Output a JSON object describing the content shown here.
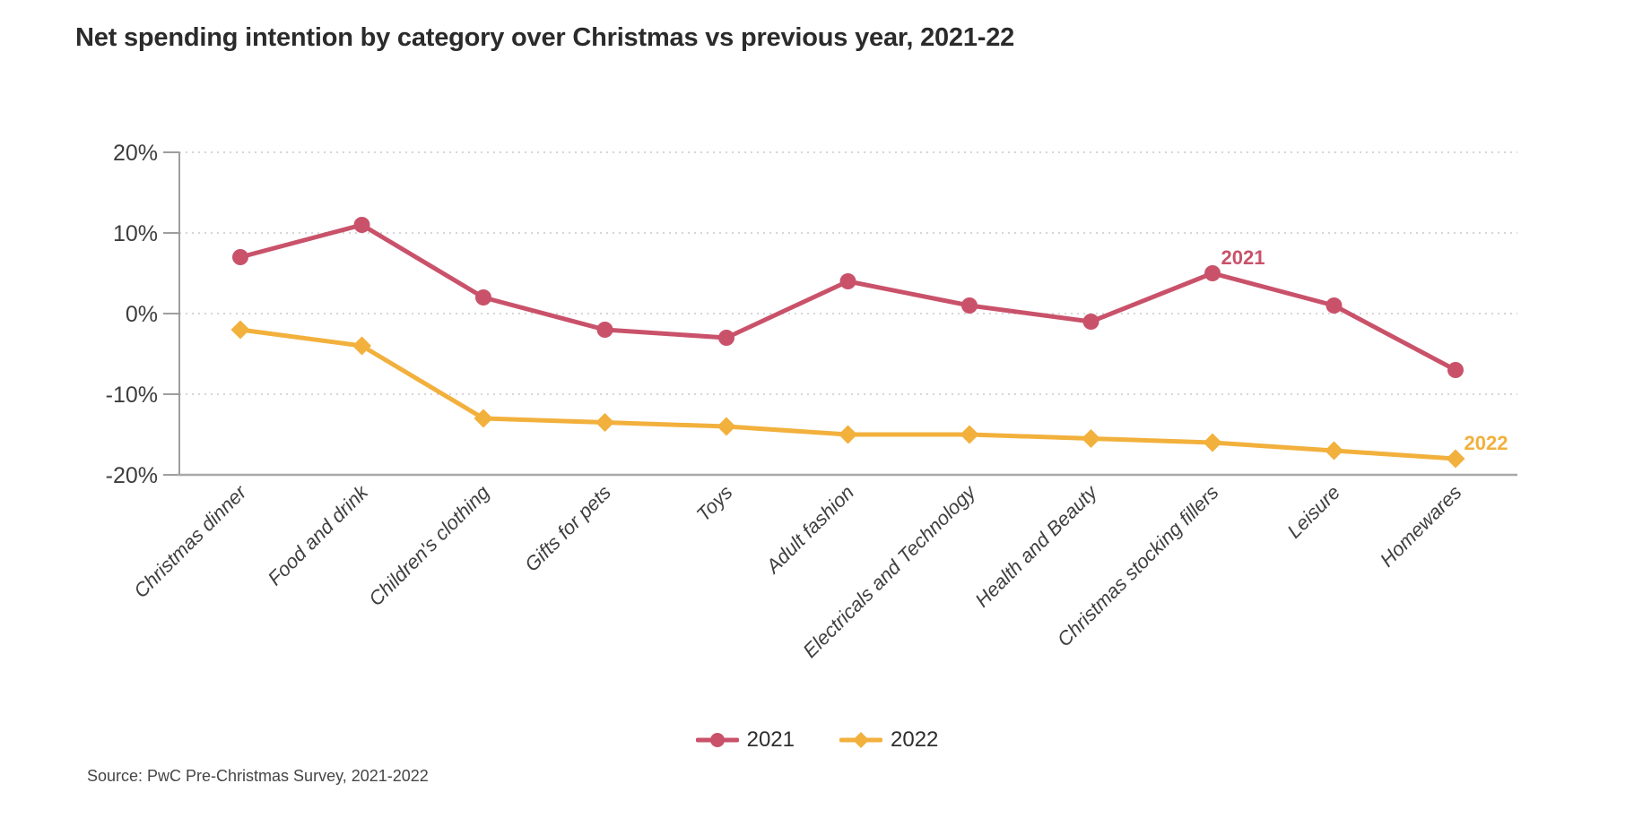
{
  "title": "Net spending intention by category over Christmas vs previous year, 2021-22",
  "source": "Source: PwC Pre-Christmas Survey, 2021-2022",
  "legend": [
    {
      "label": "2021",
      "color": "#c9526a",
      "marker": "circle"
    },
    {
      "label": "2022",
      "color": "#f2b03c",
      "marker": "diamond"
    }
  ],
  "chart_data": {
    "type": "line",
    "title": "Net spending intention by category over Christmas vs previous year, 2021-22",
    "categories": [
      "Christmas dinner",
      "Food and drink",
      "Children's clothing",
      "Gifts for pets",
      "Toys",
      "Adult fashion",
      "Electricals and Technology",
      "Health and Beauty",
      "Christmas stocking fillers",
      "Leisure",
      "Homewares"
    ],
    "series": [
      {
        "name": "2021",
        "color": "#c9526a",
        "marker": "circle",
        "values": [
          7,
          11,
          2,
          -2,
          -3,
          4,
          1,
          -1,
          5,
          1,
          -7
        ],
        "inline_label": {
          "text": "2021",
          "at_category": "Christmas stocking fillers"
        }
      },
      {
        "name": "2022",
        "color": "#f2b03c",
        "marker": "diamond",
        "values": [
          -2,
          -4,
          -13,
          -13.5,
          -14,
          -15,
          -15,
          -15.5,
          -16,
          -17,
          -18
        ],
        "inline_label": {
          "text": "2022",
          "at_category": "Homewares"
        }
      }
    ],
    "xlabel": "",
    "ylabel": "",
    "yticks": [
      20,
      10,
      0,
      -10,
      -20
    ],
    "ytick_suffix": "%",
    "ylim": [
      -20,
      20
    ],
    "grid": "horizontal-dotted",
    "legend_position": "bottom-center",
    "source": "Source: PwC Pre-Christmas Survey, 2021-2022"
  }
}
